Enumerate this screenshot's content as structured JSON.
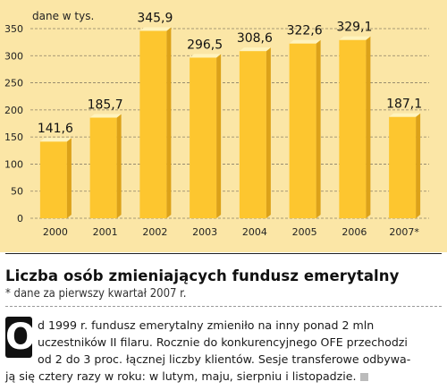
{
  "chart_data": {
    "type": "bar",
    "unit_label": "dane w tys.",
    "categories": [
      "2000",
      "2001",
      "2002",
      "2003",
      "2004",
      "2005",
      "2006",
      "2007*"
    ],
    "values": [
      141.6,
      185.7,
      345.9,
      296.5,
      308.6,
      322.6,
      329.1,
      187.1
    ],
    "value_labels": [
      "141,6",
      "185,7",
      "345,9",
      "296,5",
      "308,6",
      "322,6",
      "329,1",
      "187,1"
    ],
    "y_ticks": [
      "0",
      "50",
      "100",
      "150",
      "200",
      "250",
      "300",
      "350"
    ],
    "ylim": [
      0,
      350
    ],
    "grid": true
  },
  "title": "Liczba osób zmieniających fundusz emerytalny",
  "footnote": "* dane za pierwszy kwartał 2007 r.",
  "article": {
    "dropcap": "O",
    "lines": [
      "d 1999 r. fundusz emerytalny zmieniło na inny ponad 2 mln",
      "uczestników II filaru. Rocznie do konkurencyjnego OFE przechodzi",
      "od 2 do 3 proc. łącznej liczby klientów. Sesje transferowe odbywa-",
      "ją się cztery razy w roku: w lutym, maju, sierpniu i listopadzie."
    ]
  },
  "colors": {
    "panel_background": "#fbe6a6",
    "bar_front": "#fdc62f",
    "bar_side": "#dca219",
    "bar_top": "#fff3bd",
    "gridline": "#8b8066"
  }
}
